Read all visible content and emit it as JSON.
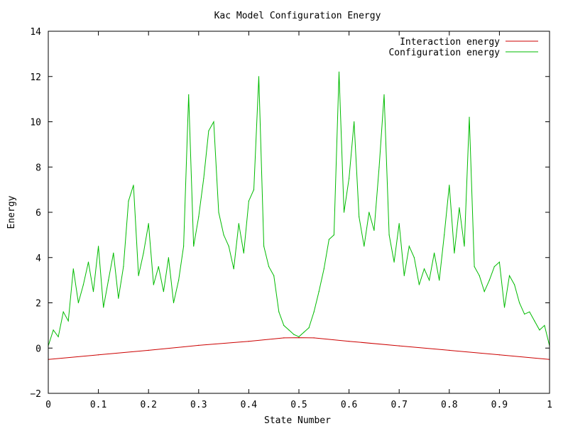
{
  "chart_data": {
    "type": "line",
    "title": "Kac Model Configuration Energy",
    "xlabel": "State Number",
    "ylabel": "Energy",
    "xlim": [
      0,
      1
    ],
    "ylim": [
      -2,
      14
    ],
    "xticks": [
      0,
      0.1,
      0.2,
      0.3,
      0.4,
      0.5,
      0.6,
      0.7,
      0.8,
      0.9,
      1
    ],
    "xtick_labels": [
      "0",
      "0.1",
      "0.2",
      "0.3",
      "0.4",
      "0.5",
      "0.6",
      "0.7",
      "0.8",
      "0.9",
      "1"
    ],
    "yticks": [
      -2,
      0,
      2,
      4,
      6,
      8,
      10,
      12,
      14
    ],
    "ytick_labels": [
      "−2",
      "0",
      "2",
      "4",
      "6",
      "8",
      "10",
      "12",
      "14"
    ],
    "grid": false,
    "legend_position": "top-right",
    "series": [
      {
        "name": "Interaction energy",
        "color": "#cc0000",
        "x": [
          0,
          0.1,
          0.2,
          0.3,
          0.4,
          0.47,
          0.5,
          0.53,
          0.6,
          0.7,
          0.8,
          0.9,
          1.0
        ],
        "y": [
          -0.5,
          -0.3,
          -0.1,
          0.12,
          0.3,
          0.45,
          0.46,
          0.45,
          0.3,
          0.1,
          -0.1,
          -0.3,
          -0.5
        ]
      },
      {
        "name": "Configuration energy",
        "color": "#00bb00",
        "x": [
          0.0,
          0.01,
          0.02,
          0.03,
          0.04,
          0.05,
          0.06,
          0.07,
          0.08,
          0.09,
          0.1,
          0.11,
          0.12,
          0.13,
          0.14,
          0.15,
          0.16,
          0.17,
          0.18,
          0.19,
          0.2,
          0.21,
          0.22,
          0.23,
          0.24,
          0.25,
          0.26,
          0.27,
          0.28,
          0.29,
          0.3,
          0.31,
          0.32,
          0.33,
          0.34,
          0.35,
          0.36,
          0.37,
          0.38,
          0.39,
          0.4,
          0.41,
          0.42,
          0.43,
          0.44,
          0.45,
          0.46,
          0.47,
          0.48,
          0.49,
          0.5,
          0.51,
          0.52,
          0.53,
          0.54,
          0.55,
          0.56,
          0.57,
          0.58,
          0.59,
          0.6,
          0.61,
          0.62,
          0.63,
          0.64,
          0.65,
          0.66,
          0.67,
          0.68,
          0.69,
          0.7,
          0.71,
          0.72,
          0.73,
          0.74,
          0.75,
          0.76,
          0.77,
          0.78,
          0.79,
          0.8,
          0.81,
          0.82,
          0.83,
          0.84,
          0.85,
          0.86,
          0.87,
          0.88,
          0.89,
          0.9,
          0.91,
          0.92,
          0.93,
          0.94,
          0.95,
          0.96,
          0.97,
          0.98,
          0.99,
          1.0
        ],
        "y": [
          0.1,
          0.8,
          0.5,
          1.6,
          1.2,
          3.5,
          2.0,
          2.8,
          3.8,
          2.5,
          4.5,
          1.8,
          3.0,
          4.2,
          2.2,
          3.6,
          6.5,
          7.2,
          3.2,
          4.2,
          5.5,
          2.8,
          3.6,
          2.5,
          4.0,
          2.0,
          3.0,
          4.5,
          11.2,
          4.5,
          5.8,
          7.5,
          9.6,
          10.0,
          6.0,
          5.0,
          4.5,
          3.5,
          5.5,
          4.2,
          6.5,
          7.0,
          12.0,
          4.5,
          3.6,
          3.2,
          1.6,
          1.0,
          0.8,
          0.6,
          0.5,
          0.7,
          0.9,
          1.6,
          2.5,
          3.5,
          4.8,
          5.0,
          12.2,
          6.0,
          7.5,
          10.0,
          5.8,
          4.5,
          6.0,
          5.2,
          8.0,
          11.2,
          5.0,
          3.8,
          5.5,
          3.2,
          4.5,
          4.0,
          2.8,
          3.5,
          3.0,
          4.2,
          3.0,
          5.0,
          7.2,
          4.2,
          6.2,
          4.5,
          10.2,
          3.6,
          3.2,
          2.5,
          3.0,
          3.6,
          3.8,
          1.8,
          3.2,
          2.8,
          2.0,
          1.5,
          1.6,
          1.2,
          0.8,
          1.0,
          0.1
        ]
      }
    ]
  }
}
